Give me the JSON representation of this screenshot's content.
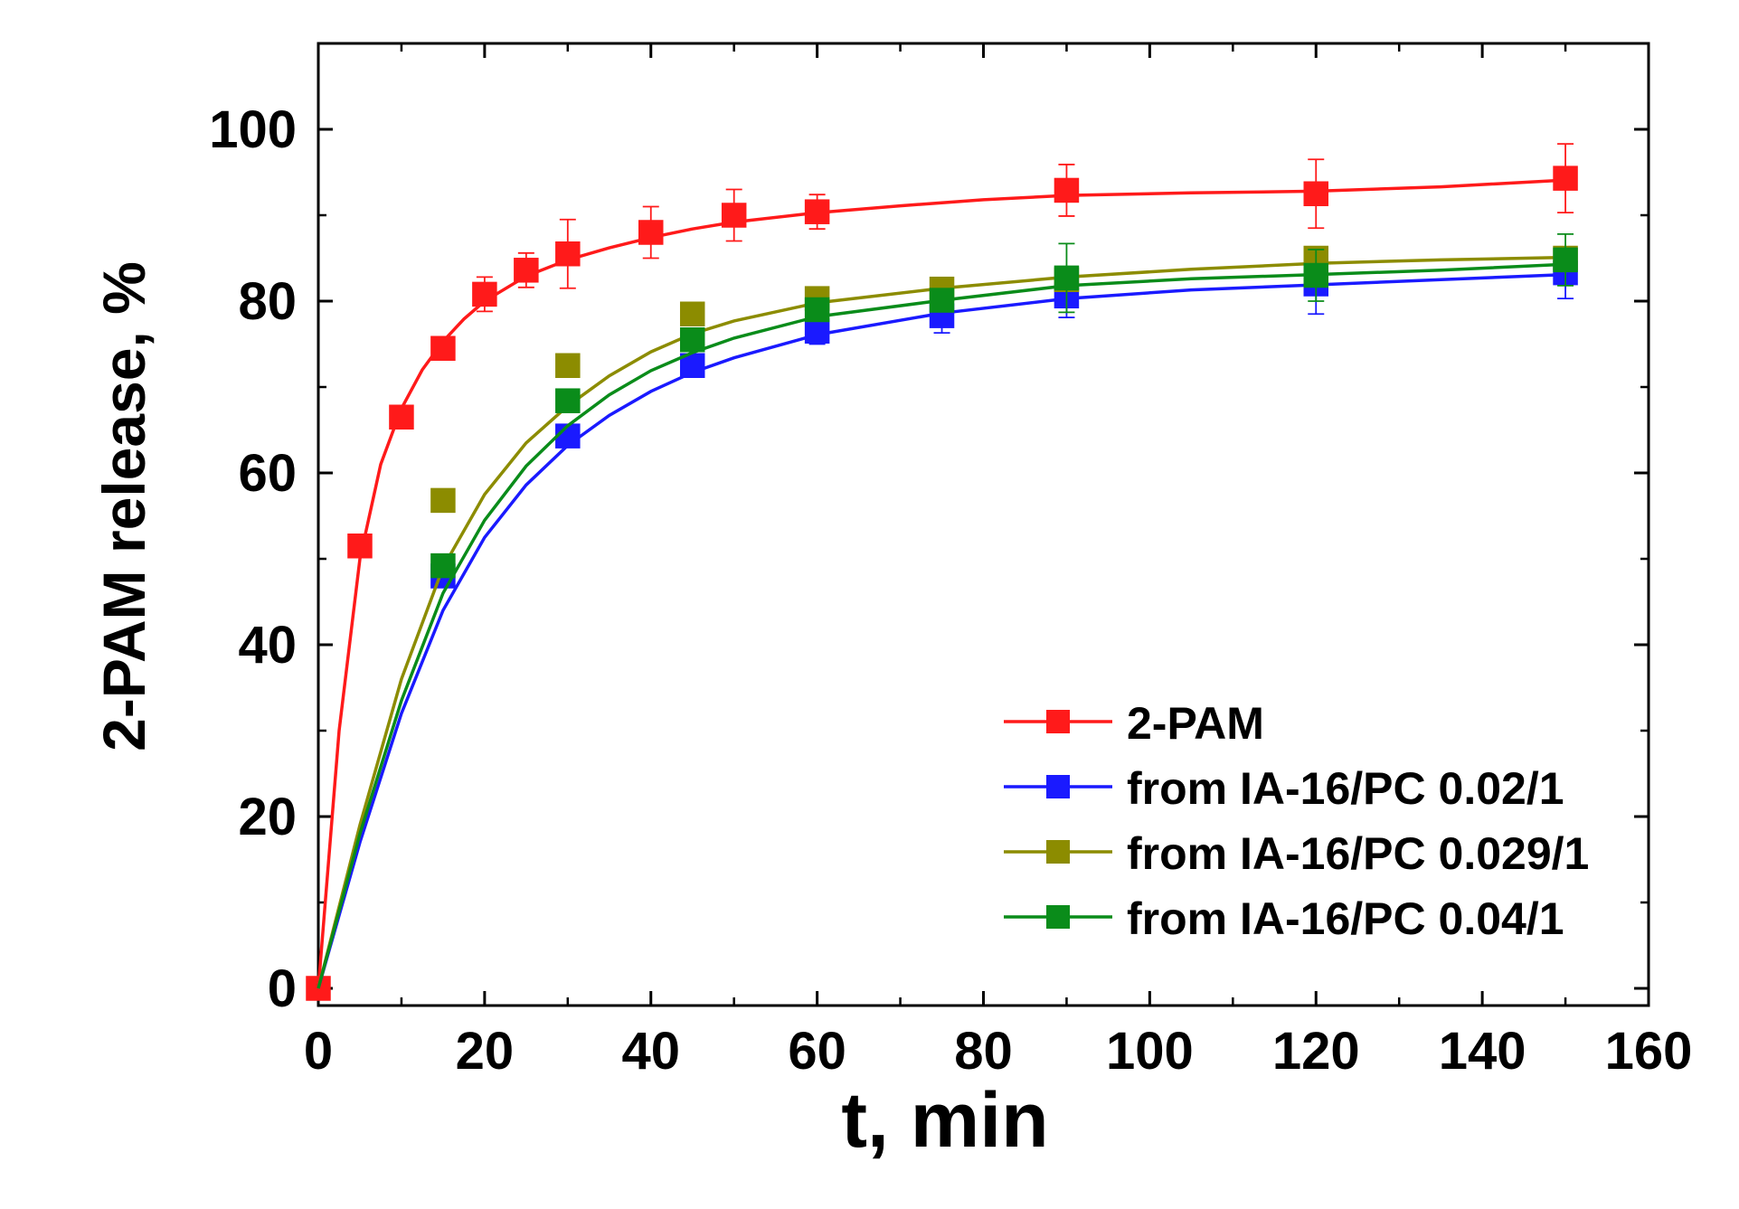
{
  "chart_data": {
    "type": "scatter",
    "title": "",
    "xlabel": "t, min",
    "ylabel": "2-PAM release, %",
    "xlim": [
      0,
      160
    ],
    "ylim": [
      -2,
      110
    ],
    "x_ticks": [
      "0",
      "20",
      "40",
      "60",
      "80",
      "100",
      "120",
      "140",
      "160"
    ],
    "y_ticks": [
      "0",
      "20",
      "40",
      "60",
      "80",
      "100"
    ],
    "x_tick_values": [
      0,
      20,
      40,
      60,
      80,
      100,
      120,
      140,
      160
    ],
    "y_tick_values": [
      0,
      20,
      40,
      60,
      80,
      100
    ],
    "legend_position": "bottom-right",
    "grid": false,
    "series": [
      {
        "name": "2-PAM",
        "color": "#ff1a1a",
        "x": [
          0,
          5,
          10,
          15,
          20,
          25,
          30,
          40,
          50,
          60,
          90,
          120,
          150
        ],
        "y": [
          0,
          51.5,
          66.5,
          74.5,
          80.8,
          83.6,
          85.5,
          88,
          90,
          90.4,
          92.9,
          92.5,
          94.3
        ],
        "err": [
          0,
          0,
          0,
          0,
          2,
          2,
          4,
          3,
          3,
          2,
          3,
          4,
          4
        ],
        "fit_x": [
          0,
          2.5,
          5,
          7.5,
          10,
          12.5,
          15,
          17.5,
          20,
          25,
          30,
          35,
          40,
          45,
          50,
          60,
          70,
          80,
          90,
          105,
          120,
          135,
          150
        ],
        "fit_y": [
          0,
          30,
          50,
          61,
          67.5,
          72,
          75.3,
          77.9,
          80,
          82.9,
          84.8,
          86.2,
          87.4,
          88.4,
          89.2,
          90.3,
          91.1,
          91.8,
          92.3,
          92.6,
          92.8,
          93.3,
          94.1
        ]
      },
      {
        "name": "from IA-16/PC 0.02/1",
        "color": "#1a1aff",
        "x": [
          15,
          30,
          45,
          60,
          75,
          90,
          120,
          150
        ],
        "y": [
          48,
          64.3,
          72.5,
          76.5,
          78.3,
          80.6,
          82,
          83.3
        ],
        "err": [
          0,
          0,
          0,
          1.5,
          2,
          2.5,
          3.5,
          3
        ],
        "fit_x": [
          0,
          5,
          10,
          15,
          20,
          25,
          30,
          35,
          40,
          45,
          50,
          60,
          75,
          90,
          105,
          120,
          135,
          150
        ],
        "fit_y": [
          0,
          17,
          32,
          44,
          52.5,
          58.6,
          63.2,
          66.7,
          69.5,
          71.7,
          73.4,
          76.1,
          78.6,
          80.3,
          81.3,
          81.9,
          82.5,
          83.1
        ]
      },
      {
        "name": "from IA-16/PC 0.029/1",
        "color": "#8c8c00",
        "x": [
          15,
          30,
          45,
          60,
          75,
          90,
          120,
          150
        ],
        "y": [
          56.8,
          72.5,
          78.5,
          80.3,
          81.4,
          82.5,
          85,
          85
        ],
        "err": [
          0,
          0,
          0,
          0,
          0,
          0,
          0,
          0
        ],
        "fit_x": [
          0,
          5,
          10,
          15,
          20,
          25,
          30,
          35,
          40,
          45,
          50,
          60,
          75,
          90,
          105,
          120,
          135,
          150
        ],
        "fit_y": [
          0,
          19,
          36,
          49,
          57.5,
          63.5,
          67.8,
          71.3,
          74.1,
          76.2,
          77.7,
          79.8,
          81.5,
          82.8,
          83.7,
          84.4,
          84.8,
          85.1
        ]
      },
      {
        "name": "from IA-16/PC 0.04/1",
        "color": "#0a8c1a",
        "x": [
          15,
          30,
          45,
          60,
          75,
          90,
          120,
          150
        ],
        "y": [
          49.2,
          68.4,
          75.5,
          79,
          80.1,
          82.7,
          83,
          84.8
        ],
        "err": [
          0,
          0,
          0,
          0,
          0,
          4,
          3,
          3
        ],
        "fit_x": [
          0,
          5,
          10,
          15,
          20,
          25,
          30,
          35,
          40,
          45,
          50,
          60,
          75,
          90,
          105,
          120,
          135,
          150
        ],
        "fit_y": [
          0,
          18,
          33.5,
          46,
          54.5,
          60.8,
          65.5,
          69.1,
          71.9,
          74,
          75.7,
          78.2,
          80.1,
          81.8,
          82.6,
          83.1,
          83.6,
          84.3
        ]
      }
    ]
  }
}
